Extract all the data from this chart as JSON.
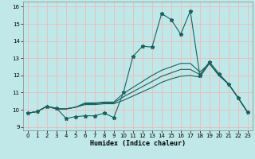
{
  "xlabel": "Humidex (Indice chaleur)",
  "bg_color": "#c0e8e8",
  "grid_color": "#e8c0c0",
  "line_color": "#1a6060",
  "xlim": [
    -0.5,
    23.5
  ],
  "ylim": [
    8.8,
    16.3
  ],
  "xticks": [
    0,
    1,
    2,
    3,
    4,
    5,
    6,
    7,
    8,
    9,
    10,
    11,
    12,
    13,
    14,
    15,
    16,
    17,
    18,
    19,
    20,
    21,
    22,
    23
  ],
  "yticks": [
    9,
    10,
    11,
    12,
    13,
    14,
    15,
    16
  ],
  "series_main": [
    9.8,
    9.9,
    10.2,
    10.1,
    9.5,
    9.6,
    9.65,
    9.65,
    9.8,
    9.55,
    11.0,
    13.1,
    13.7,
    13.65,
    15.6,
    15.25,
    14.4,
    15.75,
    12.0,
    12.8,
    12.1,
    11.5,
    10.7,
    9.85
  ],
  "series_smooth1": [
    9.8,
    9.9,
    10.2,
    10.05,
    10.05,
    10.15,
    10.3,
    10.3,
    10.35,
    10.35,
    10.55,
    10.8,
    11.05,
    11.3,
    11.6,
    11.8,
    11.95,
    12.0,
    11.9,
    12.7,
    12.0,
    11.5,
    10.7,
    9.85
  ],
  "series_smooth2": [
    9.8,
    9.9,
    10.2,
    10.05,
    10.05,
    10.15,
    10.35,
    10.35,
    10.4,
    10.4,
    10.75,
    11.05,
    11.35,
    11.65,
    11.95,
    12.15,
    12.35,
    12.35,
    12.05,
    12.7,
    12.0,
    11.5,
    10.7,
    9.85
  ],
  "series_smooth3": [
    9.8,
    9.9,
    10.2,
    10.05,
    10.05,
    10.15,
    10.4,
    10.4,
    10.45,
    10.45,
    10.95,
    11.3,
    11.65,
    12.0,
    12.3,
    12.5,
    12.7,
    12.7,
    12.2,
    12.7,
    12.0,
    11.5,
    10.7,
    9.85
  ]
}
